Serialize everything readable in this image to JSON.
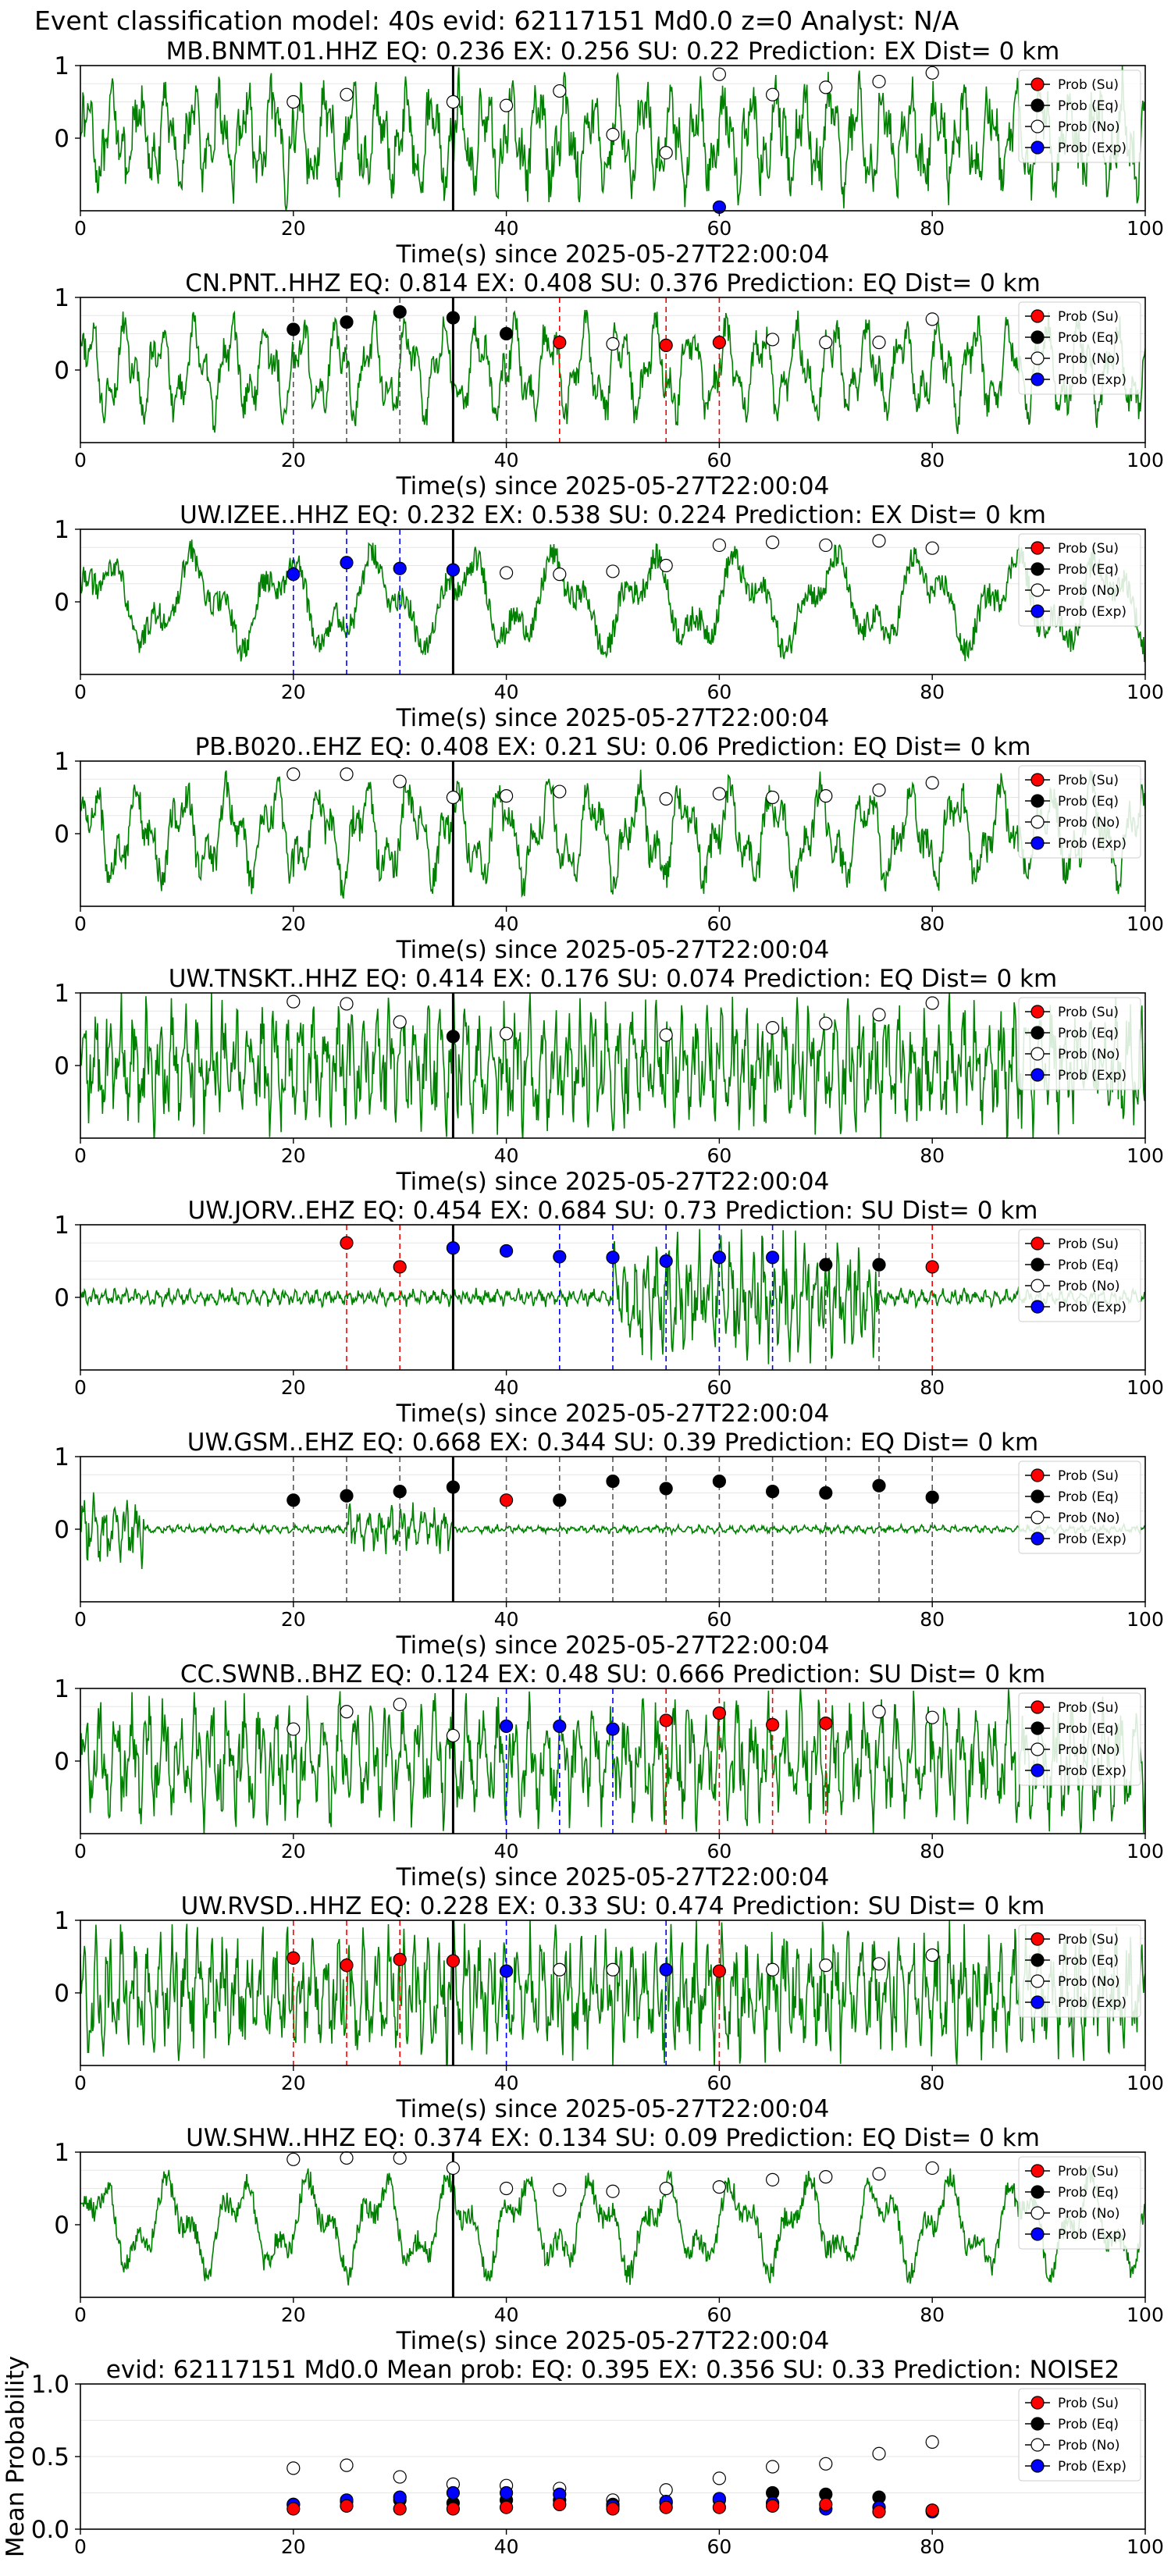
{
  "suptitle": "Event classification model: 40s evid: 62117151 Md0.0 z=0 Analyst: N/A",
  "legend_labels": [
    "Prob (Su)",
    "Prob (Eq)",
    "Prob (No)",
    "Prob (Exp)"
  ],
  "colors": {
    "waveform": "#008000",
    "su": "#ff0000",
    "eq": "#000000",
    "no": "#ffffff",
    "exp": "#0000ff",
    "pick": "#000000"
  },
  "chart_data": [
    {
      "type": "line",
      "title": "MB.BNMT.01.HHZ   EQ: 0.236  EX: 0.256  SU: 0.22   Prediction: EX    Dist= 0 km",
      "xlabel": "Time(s) since 2025-05-27T22:00:04",
      "xlim": [
        0,
        100
      ],
      "ylim": [
        -1,
        1
      ],
      "yticks": [
        0,
        1
      ],
      "xticks": [
        0,
        20,
        40,
        60,
        80,
        100
      ],
      "pick_time": 35,
      "wave_freq": 1.2,
      "wave_noise": 0.6,
      "points": [
        [
          20,
          "no",
          0.5
        ],
        [
          25,
          "no",
          0.6
        ],
        [
          35,
          "no",
          0.5
        ],
        [
          40,
          "no",
          0.45
        ],
        [
          45,
          "no",
          0.65
        ],
        [
          50,
          "no",
          0.05
        ],
        [
          55,
          "no",
          -0.2
        ],
        [
          60,
          "no",
          0.88
        ],
        [
          65,
          "no",
          0.6
        ],
        [
          70,
          "no",
          0.7
        ],
        [
          75,
          "no",
          0.78
        ],
        [
          80,
          "no",
          0.9
        ],
        [
          60,
          "exp",
          -0.95
        ]
      ],
      "dashed": []
    },
    {
      "type": "line",
      "title": "CN.PNT..HHZ   EQ: 0.814  EX: 0.408  SU: 0.376   Prediction: EQ    Dist= 0 km",
      "xlabel": "Time(s) since 2025-05-27T22:00:04",
      "xlim": [
        0,
        100
      ],
      "ylim": [
        -1,
        1
      ],
      "yticks": [
        0,
        1
      ],
      "xticks": [
        0,
        20,
        40,
        60,
        80,
        100
      ],
      "pick_time": 35,
      "wave_freq": 0.9,
      "wave_noise": 0.4,
      "points": [
        [
          20,
          "eq",
          0.56
        ],
        [
          25,
          "eq",
          0.66
        ],
        [
          30,
          "eq",
          0.8
        ],
        [
          35,
          "eq",
          0.72
        ],
        [
          40,
          "eq",
          0.5
        ],
        [
          45,
          "su",
          0.38
        ],
        [
          50,
          "no",
          0.36
        ],
        [
          55,
          "su",
          0.34
        ],
        [
          60,
          "su",
          0.38
        ],
        [
          65,
          "no",
          0.42
        ],
        [
          70,
          "no",
          0.38
        ],
        [
          75,
          "no",
          0.38
        ],
        [
          80,
          "no",
          0.7
        ]
      ],
      "dashed": [
        [
          20,
          "eq"
        ],
        [
          25,
          "eq"
        ],
        [
          30,
          "eq"
        ],
        [
          40,
          "eq"
        ],
        [
          45,
          "su"
        ],
        [
          55,
          "su"
        ],
        [
          60,
          "su"
        ]
      ]
    },
    {
      "type": "line",
      "title": "UW.IZEE..HHZ   EQ: 0.232  EX: 0.538  SU: 0.224   Prediction: EX    Dist= 0 km",
      "xlabel": "Time(s) since 2025-05-27T22:00:04",
      "xlim": [
        0,
        100
      ],
      "ylim": [
        -1,
        1
      ],
      "yticks": [
        0,
        1
      ],
      "xticks": [
        0,
        20,
        40,
        60,
        80,
        100
      ],
      "pick_time": 35,
      "wave_freq": 0.35,
      "wave_noise": 0.35,
      "points": [
        [
          20,
          "exp",
          0.38
        ],
        [
          25,
          "exp",
          0.54
        ],
        [
          30,
          "exp",
          0.46
        ],
        [
          35,
          "exp",
          0.44
        ],
        [
          40,
          "no",
          0.4
        ],
        [
          45,
          "no",
          0.38
        ],
        [
          50,
          "no",
          0.42
        ],
        [
          55,
          "no",
          0.5
        ],
        [
          60,
          "no",
          0.78
        ],
        [
          65,
          "no",
          0.82
        ],
        [
          70,
          "no",
          0.78
        ],
        [
          75,
          "no",
          0.84
        ],
        [
          80,
          "no",
          0.74
        ]
      ],
      "dashed": [
        [
          20,
          "exp"
        ],
        [
          25,
          "exp"
        ],
        [
          30,
          "exp"
        ]
      ]
    },
    {
      "type": "line",
      "title": "PB.B020..EHZ   EQ: 0.408  EX: 0.21  SU: 0.06   Prediction: EQ    Dist= 0 km",
      "xlabel": "Time(s) since 2025-05-27T22:00:04",
      "xlim": [
        0,
        100
      ],
      "ylim": [
        -1,
        1
      ],
      "yticks": [
        0,
        1
      ],
      "xticks": [
        0,
        20,
        40,
        60,
        80,
        100
      ],
      "pick_time": 35,
      "wave_freq": 0.7,
      "wave_noise": 0.45,
      "points": [
        [
          20,
          "no",
          0.82
        ],
        [
          25,
          "no",
          0.82
        ],
        [
          30,
          "no",
          0.72
        ],
        [
          35,
          "no",
          0.5
        ],
        [
          40,
          "no",
          0.52
        ],
        [
          45,
          "no",
          0.58
        ],
        [
          55,
          "no",
          0.48
        ],
        [
          60,
          "no",
          0.55
        ],
        [
          65,
          "no",
          0.5
        ],
        [
          70,
          "no",
          0.52
        ],
        [
          75,
          "no",
          0.6
        ],
        [
          80,
          "no",
          0.7
        ]
      ],
      "dashed": []
    },
    {
      "type": "line",
      "title": "UW.TNSKT..HHZ   EQ: 0.414  EX: 0.176  SU: 0.074   Prediction: EQ    Dist= 0 km",
      "xlabel": "Time(s) since 2025-05-27T22:00:04",
      "xlim": [
        0,
        100
      ],
      "ylim": [
        -1,
        1
      ],
      "yticks": [
        0,
        1
      ],
      "xticks": [
        0,
        20,
        40,
        60,
        80,
        100
      ],
      "pick_time": 35,
      "wave_freq": 2.5,
      "wave_noise": 0.8,
      "points": [
        [
          20,
          "no",
          0.88
        ],
        [
          25,
          "no",
          0.85
        ],
        [
          30,
          "no",
          0.6
        ],
        [
          35,
          "eq",
          0.4
        ],
        [
          40,
          "no",
          0.44
        ],
        [
          55,
          "no",
          0.42
        ],
        [
          65,
          "no",
          0.52
        ],
        [
          70,
          "no",
          0.58
        ],
        [
          75,
          "no",
          0.7
        ],
        [
          80,
          "no",
          0.86
        ]
      ],
      "dashed": []
    },
    {
      "type": "line",
      "title": "UW.JORV..EHZ   EQ: 0.454  EX: 0.684  SU: 0.73   Prediction: SU    Dist= 0 km",
      "xlabel": "Time(s) since 2025-05-27T22:00:04",
      "xlim": [
        0,
        100
      ],
      "ylim": [
        -1,
        1
      ],
      "yticks": [
        0,
        1
      ],
      "xticks": [
        0,
        20,
        40,
        60,
        80,
        100
      ],
      "pick_time": 35,
      "wave_freq": 3.0,
      "wave_noise": 0.9,
      "points": [
        [
          25,
          "su",
          0.75
        ],
        [
          30,
          "su",
          0.42
        ],
        [
          35,
          "exp",
          0.68
        ],
        [
          40,
          "exp",
          0.64
        ],
        [
          45,
          "exp",
          0.56
        ],
        [
          50,
          "exp",
          0.55
        ],
        [
          55,
          "exp",
          0.5
        ],
        [
          60,
          "exp",
          0.55
        ],
        [
          65,
          "exp",
          0.55
        ],
        [
          70,
          "eq",
          0.45
        ],
        [
          75,
          "eq",
          0.45
        ],
        [
          80,
          "su",
          0.42
        ]
      ],
      "dashed": [
        [
          25,
          "su"
        ],
        [
          30,
          "su"
        ],
        [
          45,
          "exp"
        ],
        [
          50,
          "exp"
        ],
        [
          55,
          "exp"
        ],
        [
          60,
          "exp"
        ],
        [
          65,
          "exp"
        ],
        [
          70,
          "eq"
        ],
        [
          75,
          "eq"
        ],
        [
          80,
          "su"
        ]
      ]
    },
    {
      "type": "line",
      "title": "UW.GSM..EHZ   EQ: 0.668  EX: 0.344  SU: 0.39   Prediction: EQ    Dist= 0 km",
      "xlabel": "Time(s) since 2025-05-27T22:00:04",
      "xlim": [
        0,
        100
      ],
      "ylim": [
        -1,
        1
      ],
      "yticks": [
        0,
        1
      ],
      "xticks": [
        0,
        20,
        40,
        60,
        80,
        100
      ],
      "pick_time": 35,
      "wave_freq": 3.0,
      "wave_noise": 0.9,
      "points": [
        [
          20,
          "eq",
          0.4
        ],
        [
          25,
          "eq",
          0.46
        ],
        [
          30,
          "eq",
          0.52
        ],
        [
          35,
          "eq",
          0.58
        ],
        [
          40,
          "su",
          0.4
        ],
        [
          45,
          "eq",
          0.4
        ],
        [
          50,
          "eq",
          0.66
        ],
        [
          55,
          "eq",
          0.56
        ],
        [
          60,
          "eq",
          0.66
        ],
        [
          65,
          "eq",
          0.52
        ],
        [
          70,
          "eq",
          0.5
        ],
        [
          75,
          "eq",
          0.6
        ],
        [
          80,
          "eq",
          0.44
        ]
      ],
      "dashed": [
        [
          20,
          "eq"
        ],
        [
          25,
          "eq"
        ],
        [
          30,
          "eq"
        ],
        [
          40,
          "eq"
        ],
        [
          45,
          "eq"
        ],
        [
          50,
          "eq"
        ],
        [
          55,
          "eq"
        ],
        [
          60,
          "eq"
        ],
        [
          65,
          "eq"
        ],
        [
          70,
          "eq"
        ],
        [
          75,
          "eq"
        ],
        [
          80,
          "eq"
        ]
      ]
    },
    {
      "type": "line",
      "title": "CC.SWNB..BHZ   EQ: 0.124  EX: 0.48  SU: 0.666   Prediction: SU    Dist= 0 km",
      "xlabel": "Time(s) since 2025-05-27T22:00:04",
      "xlim": [
        0,
        100
      ],
      "ylim": [
        -1,
        1
      ],
      "yticks": [
        0,
        1
      ],
      "xticks": [
        0,
        20,
        40,
        60,
        80,
        100
      ],
      "pick_time": 35,
      "wave_freq": 2.0,
      "wave_noise": 0.7,
      "points": [
        [
          20,
          "no",
          0.44
        ],
        [
          25,
          "no",
          0.68
        ],
        [
          30,
          "no",
          0.78
        ],
        [
          35,
          "no",
          0.35
        ],
        [
          40,
          "exp",
          0.48
        ],
        [
          45,
          "exp",
          0.48
        ],
        [
          50,
          "exp",
          0.44
        ],
        [
          55,
          "su",
          0.56
        ],
        [
          60,
          "su",
          0.66
        ],
        [
          65,
          "su",
          0.5
        ],
        [
          70,
          "su",
          0.52
        ],
        [
          75,
          "no",
          0.68
        ],
        [
          80,
          "no",
          0.6
        ]
      ],
      "dashed": [
        [
          40,
          "exp"
        ],
        [
          45,
          "exp"
        ],
        [
          50,
          "exp"
        ],
        [
          55,
          "su"
        ],
        [
          60,
          "su"
        ],
        [
          65,
          "su"
        ],
        [
          70,
          "su"
        ]
      ]
    },
    {
      "type": "line",
      "title": "UW.RVSD..HHZ   EQ: 0.228  EX: 0.33  SU: 0.474   Prediction: SU    Dist= 0 km",
      "xlabel": "Time(s) since 2025-05-27T22:00:04",
      "xlim": [
        0,
        100
      ],
      "ylim": [
        -1,
        1
      ],
      "yticks": [
        0,
        1
      ],
      "xticks": [
        0,
        20,
        40,
        60,
        80,
        100
      ],
      "pick_time": 35,
      "wave_freq": 2.5,
      "wave_noise": 0.8,
      "points": [
        [
          20,
          "su",
          0.48
        ],
        [
          25,
          "su",
          0.38
        ],
        [
          30,
          "su",
          0.46
        ],
        [
          35,
          "su",
          0.44
        ],
        [
          40,
          "exp",
          0.3
        ],
        [
          45,
          "no",
          0.32
        ],
        [
          50,
          "no",
          0.32
        ],
        [
          55,
          "exp",
          0.32
        ],
        [
          60,
          "su",
          0.3
        ],
        [
          65,
          "no",
          0.32
        ],
        [
          70,
          "no",
          0.38
        ],
        [
          75,
          "no",
          0.4
        ],
        [
          80,
          "no",
          0.52
        ]
      ],
      "dashed": [
        [
          20,
          "su"
        ],
        [
          25,
          "su"
        ],
        [
          30,
          "su"
        ],
        [
          40,
          "exp"
        ],
        [
          55,
          "exp"
        ],
        [
          60,
          "su"
        ]
      ]
    },
    {
      "type": "line",
      "title": "UW.SHW..HHZ   EQ: 0.374  EX: 0.134  SU: 0.09   Prediction: EQ    Dist= 0 km",
      "xlabel": "Time(s) since 2025-05-27T22:00:04",
      "xlim": [
        0,
        100
      ],
      "ylim": [
        -1,
        1
      ],
      "yticks": [
        0,
        1
      ],
      "xticks": [
        0,
        20,
        40,
        60,
        80,
        100
      ],
      "pick_time": 35,
      "wave_freq": 0.45,
      "wave_noise": 0.3,
      "points": [
        [
          20,
          "no",
          0.9
        ],
        [
          25,
          "no",
          0.92
        ],
        [
          30,
          "no",
          0.92
        ],
        [
          35,
          "no",
          0.78
        ],
        [
          40,
          "no",
          0.5
        ],
        [
          45,
          "no",
          0.48
        ],
        [
          50,
          "no",
          0.46
        ],
        [
          55,
          "no",
          0.5
        ],
        [
          60,
          "no",
          0.52
        ],
        [
          65,
          "no",
          0.62
        ],
        [
          70,
          "no",
          0.66
        ],
        [
          75,
          "no",
          0.7
        ],
        [
          80,
          "no",
          0.78
        ]
      ],
      "dashed": []
    },
    {
      "type": "scatter",
      "title": "evid: 62117151  Md0.0   Mean prob:   EQ: 0.395  EX: 0.356  SU: 0.33   Prediction: NOISE2",
      "ylabel": "Mean Probability",
      "xlim": [
        0,
        100
      ],
      "ylim": [
        0,
        1
      ],
      "yticks": [
        0.0,
        0.5,
        1.0
      ],
      "xticks": [
        0,
        20,
        40,
        60,
        80,
        100
      ],
      "x": [
        20,
        25,
        30,
        35,
        40,
        45,
        50,
        55,
        60,
        65,
        70,
        75,
        80
      ],
      "series": [
        {
          "key": "no",
          "values": [
            0.42,
            0.44,
            0.36,
            0.31,
            0.3,
            0.28,
            0.2,
            0.27,
            0.35,
            0.43,
            0.45,
            0.52,
            0.6
          ]
        },
        {
          "key": "eq",
          "values": [
            0.17,
            0.19,
            0.2,
            0.18,
            0.2,
            0.2,
            0.17,
            0.18,
            0.2,
            0.25,
            0.24,
            0.22,
            0.13
          ]
        },
        {
          "key": "exp",
          "values": [
            0.17,
            0.2,
            0.22,
            0.25,
            0.25,
            0.24,
            0.16,
            0.19,
            0.21,
            0.18,
            0.14,
            0.15,
            0.12
          ]
        },
        {
          "key": "su",
          "values": [
            0.14,
            0.16,
            0.14,
            0.14,
            0.15,
            0.17,
            0.14,
            0.15,
            0.15,
            0.16,
            0.17,
            0.12,
            0.13
          ]
        }
      ]
    }
  ]
}
